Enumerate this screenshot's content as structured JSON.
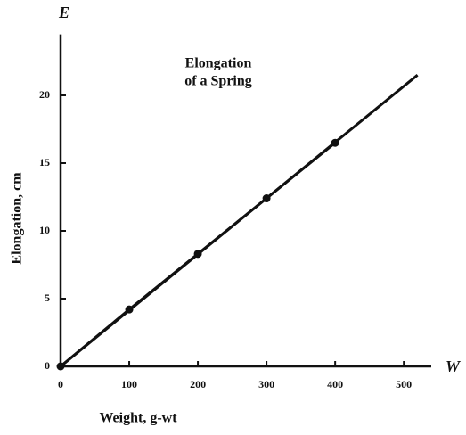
{
  "chart_data": {
    "type": "line",
    "title": [
      "Elongation",
      "of a Spring"
    ],
    "x_label": "Weight, g-wt",
    "y_label": "Elongation, cm",
    "x_axis_symbol": "W",
    "y_axis_symbol": "E",
    "series": [
      {
        "x": [
          0,
          100,
          200,
          300,
          400
        ],
        "values": [
          0,
          4.2,
          8.3,
          12.4,
          16.5
        ],
        "color": "#111111",
        "markers": true
      },
      {
        "x": [
          0,
          520
        ],
        "values": [
          0,
          21.5
        ],
        "color": "#111111",
        "markers": false
      }
    ],
    "xlim": [
      0,
      540
    ],
    "ylim": [
      0,
      24.5
    ],
    "xticks": [
      0,
      100,
      200,
      300,
      400,
      500
    ],
    "yticks": [
      0,
      5,
      10,
      15,
      20
    ]
  }
}
